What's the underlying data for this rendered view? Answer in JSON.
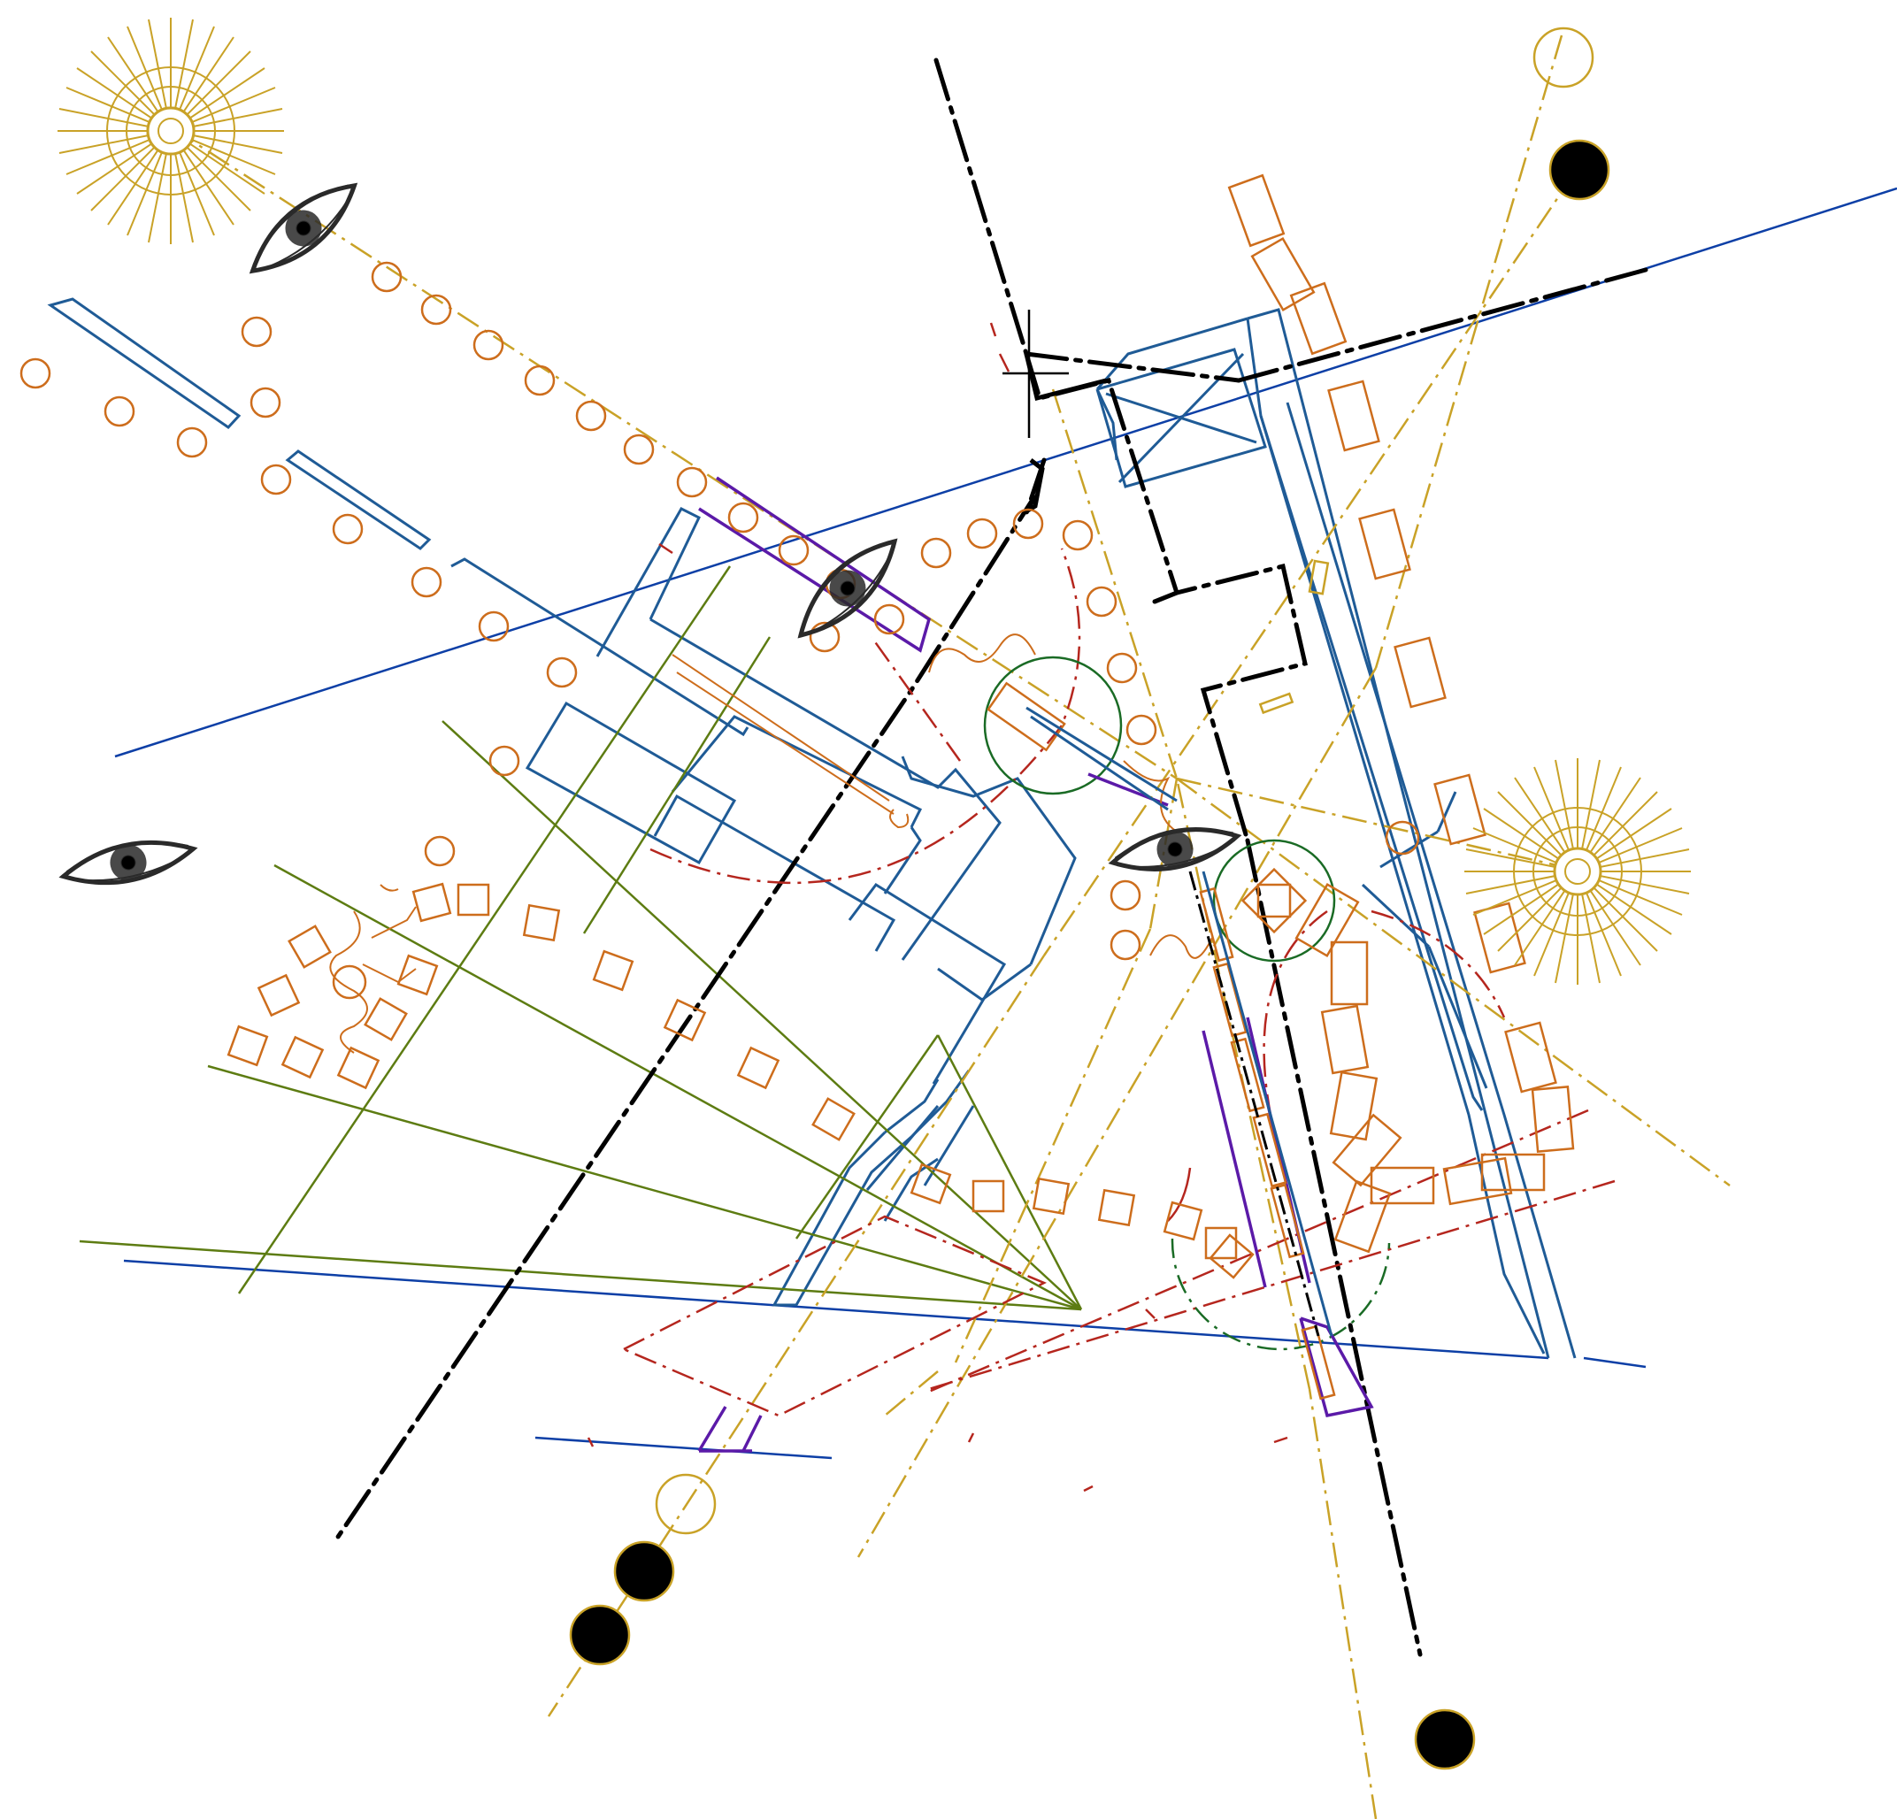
{
  "drawing": {
    "kind": "architectural site analysis drawing (no printed text)",
    "palette": {
      "black": "#000000",
      "gold": "#c9a227",
      "orange": "#cd6d1c",
      "blue_dark": "#0d3fa6",
      "blue_mid": "#1f5b96",
      "green": "#5d7c12",
      "red": "#b5261e",
      "purple": "#5b1aa8",
      "dark_green": "#1a6b25",
      "eye": "#2a2a2a"
    },
    "icons": [
      "sun-icon",
      "eye-icon",
      "moon-phase-icon",
      "cross-marker-icon"
    ]
  }
}
